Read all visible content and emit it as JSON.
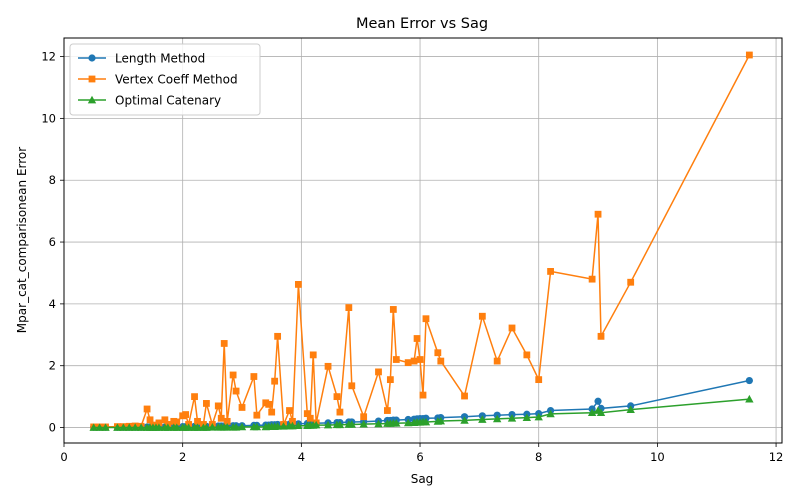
{
  "chart_data": {
    "type": "line",
    "title": "Mean Error vs Sag",
    "xlabel": "Sag",
    "ylabel": "Mpar_cat_comparisonean Error",
    "xlim": [
      0,
      12.1
    ],
    "ylim": [
      -0.5,
      12.6
    ],
    "xticks": [
      0,
      2,
      4,
      6,
      8,
      10,
      12
    ],
    "yticks": [
      0,
      2,
      4,
      6,
      8,
      10,
      12
    ],
    "grid": true,
    "legend_position": "top-left",
    "x": [
      0.5,
      0.6,
      0.7,
      0.9,
      1.0,
      1.1,
      1.2,
      1.3,
      1.4,
      1.45,
      1.5,
      1.55,
      1.6,
      1.7,
      1.75,
      1.85,
      1.9,
      2.0,
      2.05,
      2.1,
      2.2,
      2.25,
      2.35,
      2.4,
      2.5,
      2.6,
      2.65,
      2.7,
      2.75,
      2.85,
      2.9,
      3.0,
      3.2,
      3.25,
      3.4,
      3.45,
      3.5,
      3.55,
      3.6,
      3.7,
      3.8,
      3.85,
      3.95,
      4.1,
      4.15,
      4.2,
      4.25,
      4.45,
      4.6,
      4.65,
      4.8,
      4.85,
      5.05,
      5.3,
      5.45,
      5.5,
      5.55,
      5.6,
      5.8,
      5.9,
      5.95,
      6.0,
      6.05,
      6.1,
      6.3,
      6.35,
      6.75,
      7.05,
      7.3,
      7.55,
      7.8,
      8.0,
      8.2,
      8.9,
      9.0,
      9.05,
      9.55,
      11.55
    ],
    "series": [
      {
        "name": "Length Method",
        "color": "#1f77b4",
        "marker": "circle",
        "values": [
          0.01,
          0.01,
          0.01,
          0.01,
          0.01,
          0.01,
          0.01,
          0.01,
          0.02,
          0.02,
          0.02,
          0.02,
          0.02,
          0.02,
          0.02,
          0.03,
          0.03,
          0.03,
          0.03,
          0.03,
          0.04,
          0.04,
          0.04,
          0.04,
          0.05,
          0.05,
          0.05,
          0.05,
          0.05,
          0.06,
          0.06,
          0.06,
          0.07,
          0.07,
          0.08,
          0.08,
          0.09,
          0.09,
          0.1,
          0.1,
          0.11,
          0.11,
          0.12,
          0.13,
          0.13,
          0.14,
          0.14,
          0.15,
          0.16,
          0.16,
          0.18,
          0.18,
          0.19,
          0.21,
          0.23,
          0.23,
          0.24,
          0.24,
          0.26,
          0.27,
          0.28,
          0.29,
          0.29,
          0.3,
          0.31,
          0.32,
          0.35,
          0.38,
          0.4,
          0.42,
          0.43,
          0.45,
          0.55,
          0.6,
          0.85,
          0.62,
          0.7,
          1.52
        ]
      },
      {
        "name": "Vertex Coeff Method",
        "color": "#ff7f0e",
        "marker": "square",
        "values": [
          0.02,
          0.02,
          0.02,
          0.03,
          0.03,
          0.04,
          0.05,
          0.04,
          0.6,
          0.25,
          0.05,
          0.08,
          0.15,
          0.25,
          0.1,
          0.2,
          0.18,
          0.38,
          0.42,
          0.1,
          1.0,
          0.2,
          0.1,
          0.78,
          0.1,
          0.7,
          0.3,
          2.72,
          0.2,
          1.7,
          1.18,
          0.65,
          1.65,
          0.4,
          0.8,
          0.75,
          0.5,
          1.5,
          2.95,
          0.1,
          0.55,
          0.2,
          4.63,
          0.45,
          0.3,
          2.35,
          0.15,
          1.98,
          1.0,
          0.5,
          3.88,
          1.35,
          0.35,
          1.8,
          0.55,
          1.55,
          3.82,
          2.2,
          2.1,
          2.15,
          2.88,
          2.2,
          1.05,
          3.52,
          2.42,
          2.15,
          1.02,
          3.6,
          2.15,
          3.22,
          2.35,
          1.55,
          5.05,
          4.8,
          6.9,
          2.95,
          4.7,
          12.05
        ]
      },
      {
        "name": "Optimal Catenary",
        "color": "#2ca02c",
        "marker": "triangle",
        "values": [
          0.0,
          0.0,
          0.0,
          0.0,
          0.0,
          0.0,
          0.0,
          0.0,
          0.0,
          0.0,
          0.0,
          0.0,
          0.0,
          0.0,
          0.0,
          0.0,
          0.0,
          0.0,
          0.0,
          0.0,
          0.0,
          0.0,
          0.0,
          0.0,
          0.01,
          0.01,
          0.01,
          0.01,
          0.01,
          0.01,
          0.01,
          0.02,
          0.02,
          0.02,
          0.02,
          0.03,
          0.03,
          0.03,
          0.04,
          0.04,
          0.05,
          0.05,
          0.06,
          0.06,
          0.07,
          0.07,
          0.08,
          0.08,
          0.09,
          0.09,
          0.1,
          0.1,
          0.11,
          0.12,
          0.13,
          0.13,
          0.14,
          0.14,
          0.15,
          0.16,
          0.17,
          0.17,
          0.18,
          0.18,
          0.2,
          0.21,
          0.23,
          0.26,
          0.28,
          0.3,
          0.32,
          0.34,
          0.44,
          0.48,
          0.55,
          0.48,
          0.58,
          0.92
        ]
      }
    ]
  }
}
